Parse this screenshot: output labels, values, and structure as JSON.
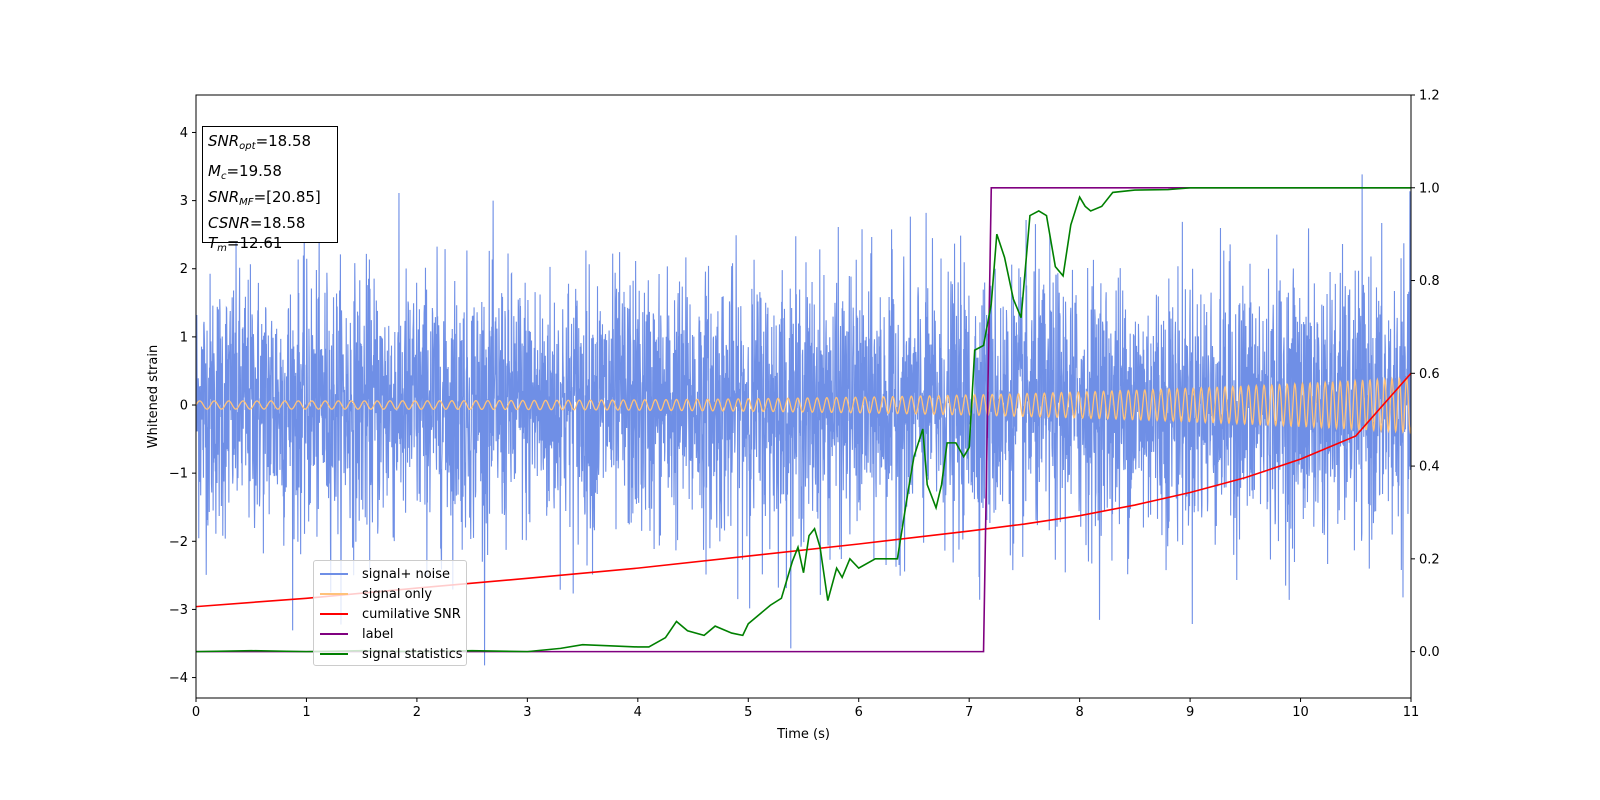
{
  "chart_data": {
    "type": "line",
    "xlabel": "Time (s)",
    "ylabel": "Whitened strain",
    "xlim": [
      0,
      11
    ],
    "ylim_left": [
      -4.3,
      4.55
    ],
    "ylim_right": [
      -0.1,
      1.2
    ],
    "x_ticks": [
      "0",
      "1",
      "2",
      "3",
      "4",
      "5",
      "6",
      "7",
      "8",
      "9",
      "10",
      "11"
    ],
    "y_ticks_left": [
      "−4",
      "−3",
      "−2",
      "−1",
      "0",
      "1",
      "2",
      "3",
      "4"
    ],
    "y_ticks_right": [
      "0.0",
      "0.2",
      "0.4",
      "0.6",
      "0.8",
      "1.0",
      "1.2"
    ],
    "grid": false,
    "legend_position": "lower-left",
    "info_box": {
      "snr_opt": {
        "sym": "SNR",
        "sub": "opt",
        "val": "=18.58"
      },
      "mc": {
        "sym": "M",
        "sub": "c",
        "val": "=19.58"
      },
      "snr_mf": {
        "sym": "SNR",
        "sub": "MF",
        "val": "=[20.85]"
      },
      "csnr": {
        "sym": "CSNR",
        "val": "=18.58"
      },
      "tm": {
        "sym": "T",
        "sub": "m",
        "val": "=12.61"
      }
    },
    "series": [
      {
        "name": "signal+ noise",
        "color": "#6f8fe6",
        "axis": "left",
        "description_values": "noise band approx ±2 with spikes to ±4"
      },
      {
        "name": "signal only",
        "color": "#ffc27a",
        "axis": "left",
        "amplitude_start": 0.06,
        "amplitude_end": 0.4
      },
      {
        "name": "cumilative SNR",
        "color": "#ff0000",
        "axis": "right",
        "x": [
          0,
          1,
          2,
          3,
          4,
          5,
          6,
          7,
          7.5,
          8,
          8.5,
          9,
          9.5,
          10,
          10.5,
          11
        ],
        "y": [
          0.097,
          0.115,
          0.137,
          0.158,
          0.18,
          0.206,
          0.232,
          0.26,
          0.275,
          0.293,
          0.316,
          0.343,
          0.375,
          0.415,
          0.465,
          0.6
        ]
      },
      {
        "name": "label",
        "color": "#800080",
        "axis": "right",
        "x": [
          0,
          7.13,
          7.2,
          11
        ],
        "y": [
          0.0,
          0.0,
          1.0,
          1.0
        ]
      },
      {
        "name": "signal statistics",
        "color": "#008000",
        "axis": "right",
        "x": [
          0,
          0.5,
          1,
          1.5,
          2,
          2.5,
          3,
          3.3,
          3.5,
          3.8,
          4,
          4.1,
          4.25,
          4.35,
          4.45,
          4.6,
          4.7,
          4.85,
          4.95,
          5.0,
          5.2,
          5.3,
          5.4,
          5.45,
          5.5,
          5.55,
          5.6,
          5.65,
          5.72,
          5.8,
          5.85,
          5.92,
          6.0,
          6.15,
          6.35,
          6.45,
          6.5,
          6.58,
          6.62,
          6.7,
          6.75,
          6.8,
          6.88,
          6.95,
          7.0,
          7.05,
          7.13,
          7.2,
          7.25,
          7.32,
          7.4,
          7.47,
          7.55,
          7.63,
          7.7,
          7.78,
          7.85,
          7.92,
          8.0,
          8.05,
          8.1,
          8.2,
          8.3,
          8.5,
          8.8,
          9.0,
          9.5,
          10,
          10.5,
          11
        ],
        "y": [
          0.0,
          0.002,
          0.0,
          0.002,
          0.0,
          0.002,
          0.0,
          0.007,
          0.015,
          0.012,
          0.01,
          0.01,
          0.03,
          0.065,
          0.045,
          0.035,
          0.055,
          0.04,
          0.035,
          0.06,
          0.1,
          0.115,
          0.195,
          0.225,
          0.17,
          0.25,
          0.265,
          0.225,
          0.11,
          0.18,
          0.16,
          0.2,
          0.18,
          0.2,
          0.2,
          0.35,
          0.42,
          0.48,
          0.36,
          0.31,
          0.36,
          0.45,
          0.45,
          0.42,
          0.44,
          0.65,
          0.66,
          0.75,
          0.9,
          0.85,
          0.76,
          0.72,
          0.94,
          0.95,
          0.94,
          0.83,
          0.81,
          0.92,
          0.98,
          0.96,
          0.95,
          0.96,
          0.99,
          0.995,
          0.996,
          1.0,
          1.0,
          1.0,
          1.0,
          1.0
        ]
      }
    ]
  }
}
